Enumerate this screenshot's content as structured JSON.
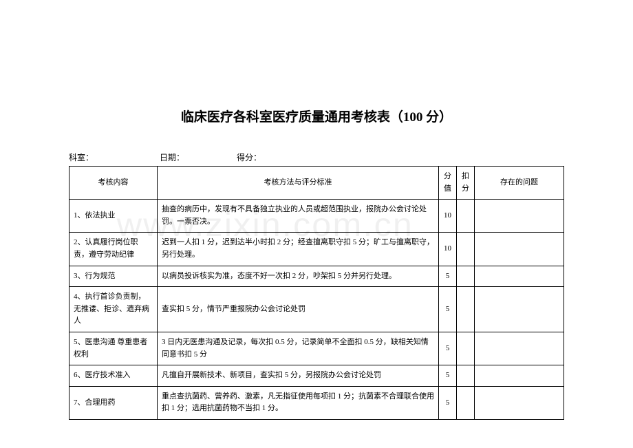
{
  "title": "临床医疗各科室医疗质量通用考核表（100 分）",
  "meta": {
    "dept_label": "科室：",
    "date_label": "日期：",
    "score_label": "得分："
  },
  "columns": {
    "content": "考核内容",
    "method": "考核方法与评分标准",
    "score": "分值",
    "deduct": "扣分",
    "issue": "存在的问题"
  },
  "rows": [
    {
      "content": "1、依法执业",
      "method": "抽查的病历中，发现有不具备独立执业的人员或超范围执业，报院办公会讨论处罚。一票否决。",
      "score": "10",
      "deduct": "",
      "issue": ""
    },
    {
      "content": "2、认真履行岗位职责，遵守劳动纪律",
      "method": "迟到一人扣 1 分，迟到达半小时扣 2 分；经查擅离职守扣 5 分；旷工与擅离职守，另行处理。",
      "score": "10",
      "deduct": "",
      "issue": ""
    },
    {
      "content": "3、行为规范",
      "method": "以病员投诉核实为准，态度不好一次扣 2 分，吵架扣 5 分并另行处理。",
      "score": "5",
      "deduct": "",
      "issue": ""
    },
    {
      "content": "4、执行首诊负责制，无推诿、拒诊、遗弃病人",
      "method": "查实扣 5 分，情节严重报院办公会讨论处罚",
      "score": "5",
      "deduct": "",
      "issue": ""
    },
    {
      "content": "5、医患沟通\n尊重患者权利",
      "method": "3 日内无医患沟通及记录，每次扣 0.5 分，记录简单不全面扣 0.5 分，缺相关知情同意书扣 5 分",
      "score": "5",
      "deduct": "",
      "issue": ""
    },
    {
      "content": "6、医疗技术准入",
      "method": "凡擅自开展新技术、新项目，查实扣 5 分，另报院办公会讨论处罚",
      "score": "5",
      "deduct": "",
      "issue": ""
    },
    {
      "content": "7、合理用药",
      "method": "重点查抗菌药、营养药、激素，凡无指征使用每项扣 1 分；抗菌素不合理联合使用扣 1 分；选用抗菌药物不当扣 1 分。",
      "score": "5",
      "deduct": "",
      "issue": ""
    }
  ],
  "watermark": "www.zixin.com.cn"
}
